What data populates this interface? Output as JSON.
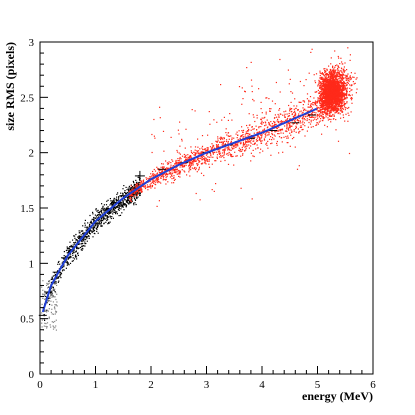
{
  "chart_data": {
    "type": "scatter",
    "xlabel": "energy (MeV)",
    "ylabel": "size RMS (pixels)",
    "xlim": [
      0,
      6
    ],
    "ylim": [
      0,
      3
    ],
    "xticks": [
      "0",
      "1",
      "2",
      "3",
      "4",
      "5",
      "6"
    ],
    "yticks": [
      "0",
      "0.5",
      "1",
      "1.5",
      "2",
      "2.5",
      "3"
    ],
    "grid": false,
    "colors": {
      "gamma_cloud": "#ff2a1a",
      "low_energy_cloud": "#000000",
      "fit_curve": "#1f3fd6",
      "profile_points": "#000000"
    },
    "series": [
      {
        "kind": "scatter-density",
        "color": "red",
        "regions": [
          {
            "x_range": [
              1.6,
              5.0
            ],
            "y_center_at_x": "follows fit curve",
            "y_spread": 0.05
          },
          {
            "x_range": [
              5.0,
              5.7
            ],
            "y_range": [
              2.3,
              2.85
            ]
          }
        ]
      },
      {
        "kind": "scatter-density",
        "color": "black",
        "regions": [
          {
            "x_range": [
              0.0,
              1.8
            ],
            "y_center_at_x": "follows fit curve",
            "y_spread": 0.06
          },
          {
            "x_range": [
              0.0,
              0.3
            ],
            "y_range": [
              0.4,
              0.85
            ]
          }
        ]
      },
      {
        "kind": "profile",
        "points": [
          {
            "x": 0.05,
            "y": 0.53
          },
          {
            "x": 0.15,
            "y": 0.74
          },
          {
            "x": 0.3,
            "y": 0.92
          },
          {
            "x": 0.45,
            "y": 1.05
          },
          {
            "x": 0.6,
            "y": 1.15
          },
          {
            "x": 0.75,
            "y": 1.24
          },
          {
            "x": 0.9,
            "y": 1.32
          },
          {
            "x": 1.05,
            "y": 1.41
          },
          {
            "x": 1.2,
            "y": 1.48
          },
          {
            "x": 1.35,
            "y": 1.55
          },
          {
            "x": 1.5,
            "y": 1.61
          },
          {
            "x": 1.65,
            "y": 1.68
          },
          {
            "x": 1.8,
            "y": 1.79
          },
          {
            "x": 2.2,
            "y": 1.85
          },
          {
            "x": 2.6,
            "y": 1.91
          },
          {
            "x": 3.0,
            "y": 2.0
          },
          {
            "x": 3.4,
            "y": 2.07
          },
          {
            "x": 3.8,
            "y": 2.13
          },
          {
            "x": 4.2,
            "y": 2.2
          },
          {
            "x": 4.6,
            "y": 2.27
          },
          {
            "x": 4.9,
            "y": 2.34
          }
        ]
      },
      {
        "kind": "fit-curve",
        "x_range": [
          0.05,
          5.0
        ],
        "points": [
          {
            "x": 0.05,
            "y": 0.56
          },
          {
            "x": 0.2,
            "y": 0.8
          },
          {
            "x": 0.5,
            "y": 1.07
          },
          {
            "x": 1.0,
            "y": 1.38
          },
          {
            "x": 1.5,
            "y": 1.59
          },
          {
            "x": 2.0,
            "y": 1.76
          },
          {
            "x": 2.5,
            "y": 1.89
          },
          {
            "x": 3.0,
            "y": 2.0
          },
          {
            "x": 3.5,
            "y": 2.09
          },
          {
            "x": 4.0,
            "y": 2.18
          },
          {
            "x": 4.5,
            "y": 2.29
          },
          {
            "x": 5.0,
            "y": 2.4
          }
        ]
      }
    ]
  }
}
